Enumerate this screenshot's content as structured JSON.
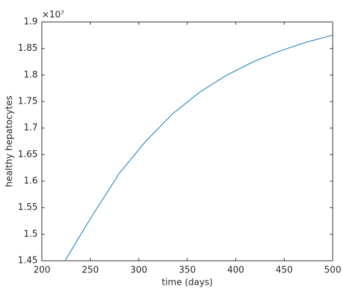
{
  "chart_data": {
    "type": "line",
    "x_label": "time (days)",
    "y_label": "healthy hepatocytes",
    "y_exponent": "×10⁷",
    "x": [
      224,
      237,
      252,
      280,
      307,
      335,
      363,
      390,
      418,
      445,
      473,
      500
    ],
    "series": [
      {
        "color": "#0072bd",
        "values": [
          1.45,
          1.49,
          1.535,
          1.615,
          1.675,
          1.727,
          1.768,
          1.799,
          1.825,
          1.845,
          1.862,
          1.875
        ]
      }
    ],
    "xlim": [
      200,
      500
    ],
    "xticks": [
      200,
      250,
      300,
      350,
      400,
      450,
      500
    ],
    "ylim": [
      1.45,
      1.9
    ],
    "yticks": [
      1.45,
      1.5,
      1.55,
      1.6,
      1.65,
      1.7,
      1.75,
      1.8,
      1.85,
      1.9
    ]
  }
}
